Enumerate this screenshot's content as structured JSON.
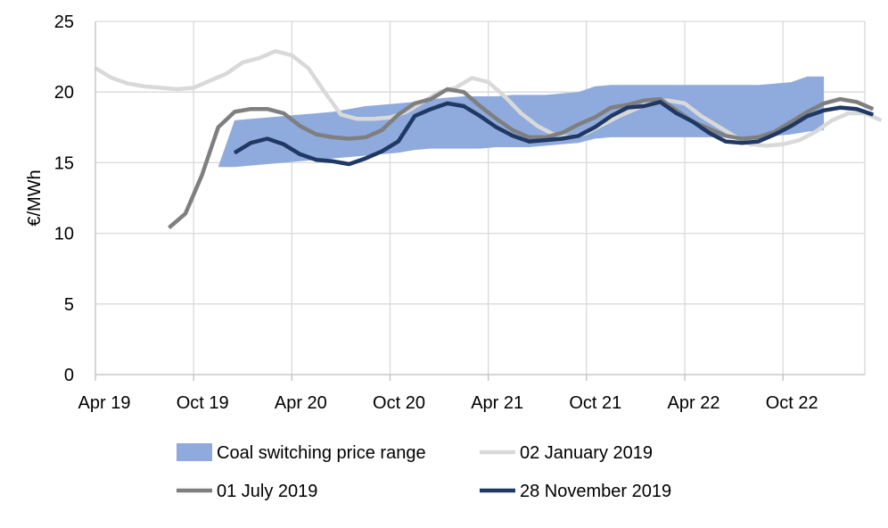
{
  "chart_data": {
    "type": "line",
    "title": "",
    "xlabel": "",
    "ylabel": "€/MWh",
    "ylim": [
      0,
      25
    ],
    "y_ticks": [
      0,
      5,
      10,
      15,
      20,
      25
    ],
    "x_range_months": [
      0,
      47
    ],
    "x_ticks": [
      {
        "label": "Apr 19",
        "month": 0
      },
      {
        "label": "Oct 19",
        "month": 6
      },
      {
        "label": "Apr 20",
        "month": 12
      },
      {
        "label": "Oct 20",
        "month": 18
      },
      {
        "label": "Apr 21",
        "month": 24
      },
      {
        "label": "Oct 21",
        "month": 30
      },
      {
        "label": "Apr 22",
        "month": 36
      },
      {
        "label": "Oct 22",
        "month": 42
      }
    ],
    "grid": true,
    "band": {
      "name": "Coal switching price range",
      "color": "#8faadc",
      "start_month": 7.5,
      "upper": [
        14.7,
        18.0,
        18.1,
        18.2,
        18.3,
        18.4,
        18.5,
        18.6,
        18.8,
        19.0,
        19.1,
        19.2,
        19.3,
        19.5,
        19.6,
        19.7,
        19.7,
        19.7,
        19.8,
        19.8,
        19.8,
        19.9,
        20.0,
        20.4,
        20.5,
        20.5,
        20.5,
        20.5,
        20.5,
        20.5,
        20.5,
        20.5,
        20.5,
        20.5,
        20.6,
        20.7,
        21.1,
        21.1
      ],
      "lower": [
        14.7,
        14.7,
        14.8,
        14.9,
        15.0,
        15.1,
        15.2,
        15.3,
        15.4,
        15.5,
        15.6,
        15.7,
        15.9,
        16.0,
        16.0,
        16.0,
        16.0,
        16.1,
        16.1,
        16.1,
        16.2,
        16.3,
        16.4,
        16.7,
        16.8,
        16.8,
        16.8,
        16.8,
        16.8,
        16.8,
        16.8,
        16.8,
        16.8,
        16.9,
        16.9,
        17.0,
        17.2,
        17.3
      ]
    },
    "series": [
      {
        "name": "02 January 2019",
        "color": "#d9d9d9",
        "start_month": 0,
        "values": [
          21.7,
          21.0,
          20.6,
          20.4,
          20.3,
          20.2,
          20.3,
          20.8,
          21.3,
          22.1,
          22.4,
          22.9,
          22.6,
          21.7,
          20.0,
          18.4,
          18.1,
          18.1,
          18.2,
          18.6,
          19.3,
          20.0,
          20.3,
          21.0,
          20.7,
          19.7,
          18.5,
          17.6,
          17.0,
          16.8,
          17.1,
          17.7,
          18.3,
          18.8,
          19.4,
          19.4,
          19.2,
          18.3,
          17.6,
          16.9,
          16.3,
          16.2,
          16.3,
          16.6,
          17.2,
          18.0,
          18.5,
          18.5,
          18.0
        ]
      },
      {
        "name": "01 July 2019",
        "color": "#7f7f7f",
        "start_month": 4.5,
        "values": [
          10.4,
          11.4,
          14.1,
          17.5,
          18.6,
          18.8,
          18.8,
          18.5,
          17.6,
          17.0,
          16.8,
          16.7,
          16.8,
          17.3,
          18.4,
          19.2,
          19.5,
          20.2,
          20.0,
          19.0,
          18.1,
          17.3,
          16.8,
          16.8,
          17.1,
          17.7,
          18.2,
          18.9,
          19.1,
          19.4,
          19.5,
          18.7,
          17.9,
          17.4,
          16.9,
          16.7,
          16.8,
          17.2,
          17.9,
          18.6,
          19.2,
          19.5,
          19.3,
          18.8
        ]
      },
      {
        "name": "28 November 2019",
        "color": "#1f3864",
        "start_month": 8.5,
        "values": [
          15.7,
          16.4,
          16.7,
          16.3,
          15.6,
          15.2,
          15.1,
          14.9,
          15.3,
          15.8,
          16.5,
          18.3,
          18.8,
          19.2,
          19.0,
          18.3,
          17.5,
          16.9,
          16.5,
          16.6,
          16.7,
          16.9,
          17.5,
          18.3,
          18.9,
          19.0,
          19.3,
          18.5,
          17.9,
          17.1,
          16.5,
          16.4,
          16.5,
          17.0,
          17.6,
          18.3,
          18.7,
          18.9,
          18.8,
          18.4
        ]
      }
    ],
    "legend": {
      "placement": "bottom",
      "items": [
        {
          "label": "Coal switching price range",
          "kind": "band",
          "color": "#8faadc"
        },
        {
          "label": "02 January 2019",
          "kind": "line",
          "color": "#d9d9d9"
        },
        {
          "label": "01 July 2019",
          "kind": "line",
          "color": "#7f7f7f"
        },
        {
          "label": "28 November 2019",
          "kind": "line",
          "color": "#1f3864"
        }
      ]
    }
  }
}
